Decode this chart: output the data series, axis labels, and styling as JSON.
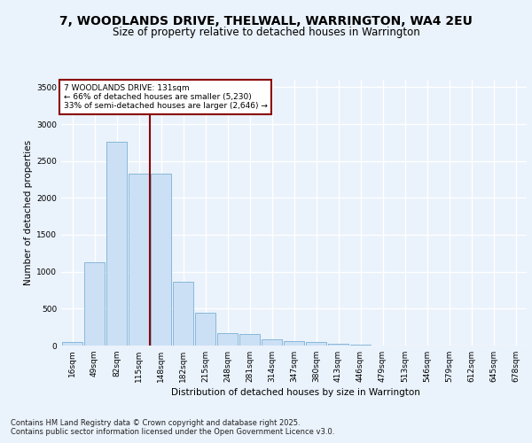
{
  "title_line1": "7, WOODLANDS DRIVE, THELWALL, WARRINGTON, WA4 2EU",
  "title_line2": "Size of property relative to detached houses in Warrington",
  "xlabel": "Distribution of detached houses by size in Warrington",
  "ylabel": "Number of detached properties",
  "categories": [
    "16sqm",
    "49sqm",
    "82sqm",
    "115sqm",
    "148sqm",
    "182sqm",
    "215sqm",
    "248sqm",
    "281sqm",
    "314sqm",
    "347sqm",
    "380sqm",
    "413sqm",
    "446sqm",
    "479sqm",
    "513sqm",
    "546sqm",
    "579sqm",
    "612sqm",
    "645sqm",
    "678sqm"
  ],
  "values": [
    50,
    1130,
    2760,
    2330,
    2330,
    870,
    450,
    170,
    160,
    85,
    55,
    45,
    30,
    10,
    6,
    4,
    2,
    1,
    1,
    0,
    0
  ],
  "bar_color": "#cce0f5",
  "bar_edgecolor": "#7ab0d4",
  "vline_color": "#8b0000",
  "annotation_title": "7 WOODLANDS DRIVE: 131sqm",
  "annotation_line2": "← 66% of detached houses are smaller (5,230)",
  "annotation_line3": "33% of semi-detached houses are larger (2,646) →",
  "annotation_box_color": "#8b0000",
  "ylim": [
    0,
    3600
  ],
  "yticks": [
    0,
    500,
    1000,
    1500,
    2000,
    2500,
    3000,
    3500
  ],
  "footnote1": "Contains HM Land Registry data © Crown copyright and database right 2025.",
  "footnote2": "Contains public sector information licensed under the Open Government Licence v3.0.",
  "bg_color": "#eaf2fb",
  "plot_bg_color": "#eaf2fb",
  "grid_color": "#ffffff",
  "title_fontsize": 10,
  "subtitle_fontsize": 8.5,
  "axis_label_fontsize": 7.5,
  "tick_fontsize": 6.5,
  "annotation_fontsize": 6.5,
  "footnote_fontsize": 6.0
}
